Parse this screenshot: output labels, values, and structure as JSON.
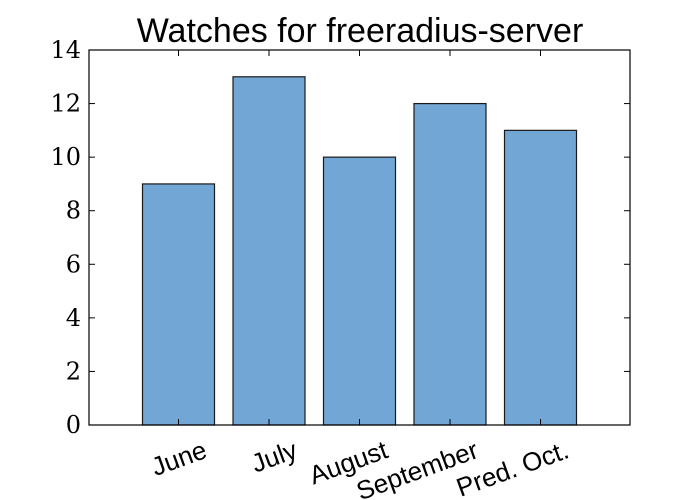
{
  "chart_data": {
    "type": "bar",
    "title": "Watches for freeradius-server",
    "categories": [
      "June",
      "July",
      "August",
      "September",
      "Pred. Oct."
    ],
    "values": [
      9,
      13,
      10,
      12,
      11
    ],
    "ylim": [
      0,
      14
    ],
    "yticks": [
      0,
      2,
      4,
      6,
      8,
      10,
      12,
      14
    ],
    "xlabel": "",
    "ylabel": "",
    "bar_color": "#72a6d5",
    "edge_color": "#1a1a1a",
    "grid": false,
    "xtick_rotation_deg": -20
  }
}
